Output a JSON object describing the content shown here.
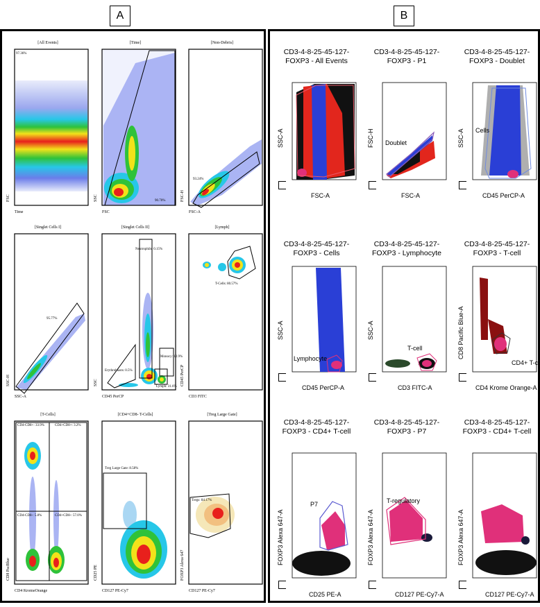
{
  "figure": {
    "label_a": "A",
    "label_b": "B"
  },
  "panel_a": {
    "plots": [
      {
        "title": "[All Events]",
        "x_label": "Time",
        "y_label": "FSC",
        "gates": [
          "97.36%"
        ]
      },
      {
        "title": "[Time]",
        "x_label": "FSC",
        "y_label": "SSC",
        "gates": [
          "90.70%"
        ]
      },
      {
        "title": "[Non-Debris]",
        "x_label": "FSC-A",
        "y_label": "FSC-H",
        "gates": [
          "93.24%"
        ]
      },
      {
        "title": "[Singlet Cells I]",
        "x_label": "SSC-A",
        "y_label": "SSC-H",
        "gates": [
          "95.77%"
        ]
      },
      {
        "title": "[Singlet Cells II]",
        "x_label": "CD45 PerCP",
        "y_label": "SSC",
        "gates": [
          "Neutrophils: 0.15%",
          "Monocy: 12.9%",
          "Erythroblasts: 0.5%",
          "Lymph: 31.6%"
        ]
      },
      {
        "title": "[Lymph]",
        "x_label": "CD3 FITC",
        "y_label": "CD45 PerCP",
        "gates": [
          "T-Cells: 80.57%"
        ]
      },
      {
        "title": "[T-Cells]",
        "x_label": "CD4 KromeOrange",
        "y_label": "CD8 PacBlue",
        "gates": [
          "CD4-CD8+: 33.9%",
          "CD4+CD8+: 3.2%",
          "CD4-CD8-: 5.8%",
          "CD4+CD8-: 57.0%"
        ]
      },
      {
        "title": "[CD4+CD8- T-Cells]",
        "x_label": "CD127 PE-Cy7",
        "y_label": "CD25 PE",
        "gates": [
          "Treg Large Gate: 8.58%"
        ]
      },
      {
        "title": "[Treg Large Gate]",
        "x_label": "CD127 PE-Cy7",
        "y_label": "FOXP3 Alexa 647",
        "gates": [
          "Tregs: 84.17%"
        ]
      }
    ]
  },
  "panel_b": {
    "plots": [
      {
        "title_line1": "CD3-4-8-25-45-127-",
        "title_line2": "FOXP3 - All Events",
        "x_label": "FSC-A",
        "y_label": "SSC-A",
        "gate": ""
      },
      {
        "title_line1": "CD3-4-8-25-45-127-",
        "title_line2": "FOXP3 - P1",
        "x_label": "FSC-A",
        "y_label": "FSC-H",
        "gate": "Doublet"
      },
      {
        "title_line1": "CD3-4-8-25-45-127-",
        "title_line2": "FOXP3 - Doublet",
        "x_label": "CD45 PerCP-A",
        "y_label": "SSC-A",
        "gate": "Cells"
      },
      {
        "title_line1": "CD3-4-8-25-45-127-",
        "title_line2": "FOXP3 - Cells",
        "x_label": "CD45 PerCP-A",
        "y_label": "SSC-A",
        "gate": "Lymphocyte"
      },
      {
        "title_line1": "CD3-4-8-25-45-127-",
        "title_line2": "FOXP3 - Lymphocyte",
        "x_label": "CD3 FITC-A",
        "y_label": "SSC-A",
        "gate": "T-cell"
      },
      {
        "title_line1": "CD3-4-8-25-45-127-",
        "title_line2": "FOXP3 - T-cell",
        "x_label": "CD4 Krome Orange-A",
        "y_label": "CD8 Pacific Blue-A",
        "gate": "CD4+ T-cell"
      },
      {
        "title_line1": "CD3-4-8-25-45-127-",
        "title_line2": "FOXP3 - CD4+ T-cell",
        "x_label": "CD25 PE-A",
        "y_label": "FOXP3 Alexa 647-A",
        "gate": "P7"
      },
      {
        "title_line1": "CD3-4-8-25-45-127-",
        "title_line2": "FOXP3 - P7",
        "x_label": "CD127 PE-Cy7-A",
        "y_label": "FOXP3 Alexa 647-A",
        "gate": "T-regulatory"
      },
      {
        "title_line1": "CD3-4-8-25-45-127-",
        "title_line2": "FOXP3 - CD4+ T-cell",
        "x_label": "CD127 PE-Cy7-A",
        "y_label": "FOXP3 Alexa 647-A",
        "gate": ""
      }
    ]
  },
  "colors": {
    "dense_red": "#e8201c",
    "dense_yellow": "#f2e21a",
    "dense_green": "#2fc23a",
    "dense_cyan": "#27c7e8",
    "scatter_blue": "#2a3fd6",
    "event_red": "#e2261d",
    "pink": "#e0307a",
    "dark_red": "#8a1010",
    "black": "#000000"
  }
}
